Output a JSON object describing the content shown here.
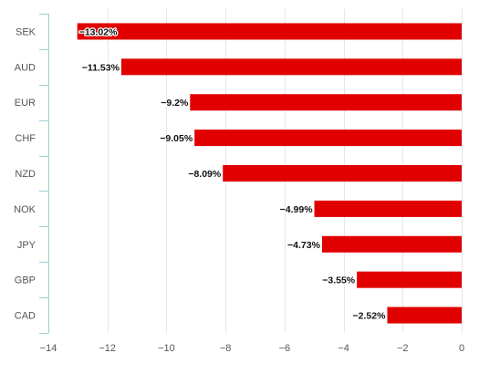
{
  "chart_data": {
    "type": "bar",
    "orientation": "horizontal",
    "title": "",
    "xlabel": "",
    "ylabel": "",
    "categories": [
      "SEK",
      "AUD",
      "EUR",
      "CHF",
      "NZD",
      "NOK",
      "JPY",
      "GBP",
      "CAD"
    ],
    "values": [
      -13.02,
      -11.53,
      -9.2,
      -9.05,
      -8.09,
      -4.99,
      -4.73,
      -3.55,
      -2.52
    ],
    "data_labels": [
      "−13.02%",
      "−11.53%",
      "−9.2%",
      "−9.05%",
      "−8.09%",
      "−4.99%",
      "−4.73%",
      "−3.55%",
      "−2.52%"
    ],
    "xlim": [
      -14,
      0
    ],
    "x_ticks": [
      -14,
      -12,
      -10,
      -8,
      -6,
      -4,
      -2,
      0
    ],
    "x_tick_labels": [
      "−14",
      "−12",
      "−10",
      "−8",
      "−6",
      "−4",
      "−2",
      "0"
    ],
    "grid": "vertical",
    "legend": "none",
    "bar_color": "#e00000",
    "axis_color": "#9fd0d8",
    "grid_color": "#e6e6e6"
  }
}
